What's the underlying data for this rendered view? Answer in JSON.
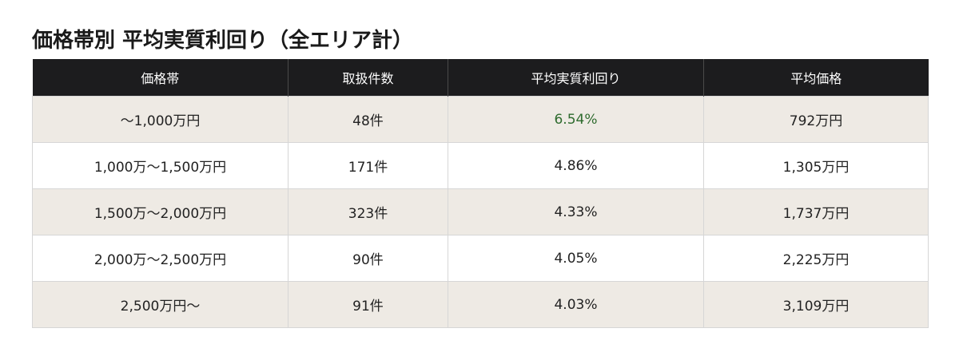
{
  "title": "価格帯別 平均実質利回り（全エリア計）",
  "colors": {
    "header_bg": "#1c1c1e",
    "row_shaded": "#eeeae4",
    "highlight": "#2e6b2e"
  },
  "table": {
    "headers": [
      "価格帯",
      "取扱件数",
      "平均実質利回り",
      "平均価格"
    ],
    "rows": [
      {
        "price_band": "〜1,000万円",
        "count": "48件",
        "yield": "6.54%",
        "avg_price": "792万円",
        "highlight_yield": true
      },
      {
        "price_band": "1,000万〜1,500万円",
        "count": "171件",
        "yield": "4.86%",
        "avg_price": "1,305万円"
      },
      {
        "price_band": "1,500万〜2,000万円",
        "count": "323件",
        "yield": "4.33%",
        "avg_price": "1,737万円"
      },
      {
        "price_band": "2,000万〜2,500万円",
        "count": "90件",
        "yield": "4.05%",
        "avg_price": "2,225万円"
      },
      {
        "price_band": "2,500万円〜",
        "count": "91件",
        "yield": "4.03%",
        "avg_price": "3,109万円"
      }
    ]
  }
}
